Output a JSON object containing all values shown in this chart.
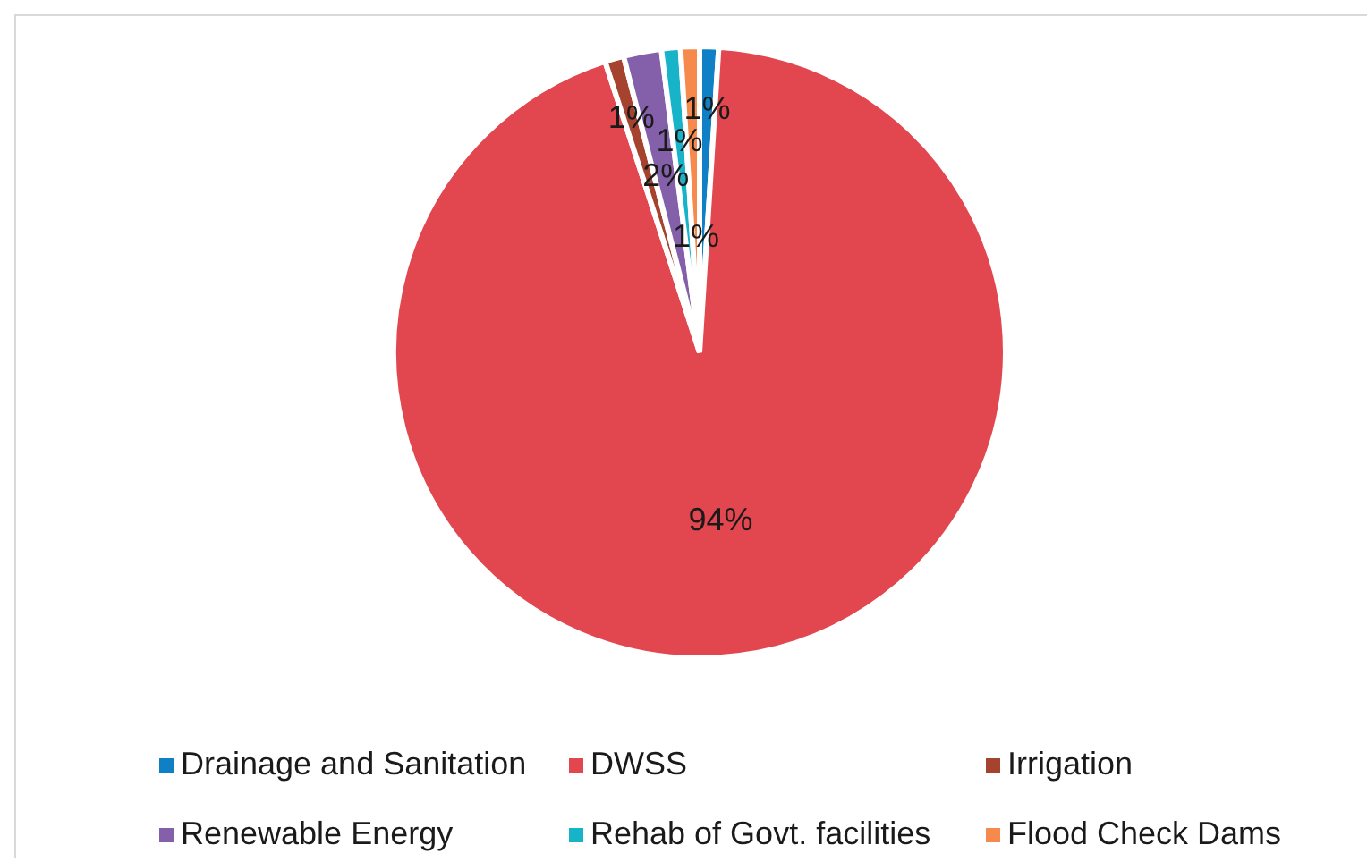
{
  "chart_data": {
    "type": "pie",
    "categories": [
      "Drainage and Sanitation",
      "DWSS",
      "Irrigation",
      "Renewable Energy",
      "Rehab of Govt. facilities",
      "Flood Check Dams"
    ],
    "values": [
      1,
      94,
      1,
      2,
      1,
      1
    ],
    "value_labels": [
      "1%",
      "94%",
      "1%",
      "2%",
      "1%",
      "1%"
    ],
    "colors": [
      "#0f80c6",
      "#e2474f",
      "#a5432e",
      "#8560aa",
      "#17b3c9",
      "#f58a4c"
    ],
    "legend": "bottom"
  }
}
